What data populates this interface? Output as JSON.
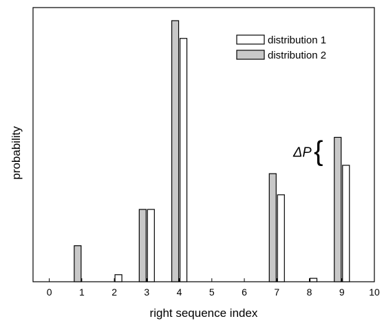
{
  "chart_data": {
    "type": "bar",
    "title": "",
    "xlabel": "right sequence index",
    "ylabel": "probability",
    "xlim": [
      -0.5,
      10
    ],
    "ylim": [
      0,
      1
    ],
    "x_ticks": [
      0,
      1,
      2,
      3,
      4,
      5,
      6,
      7,
      8,
      9,
      10
    ],
    "y_tick_labels_shown": false,
    "grid": false,
    "legend_position": "top-right",
    "categories": [
      1,
      2,
      3,
      4,
      7,
      8,
      9
    ],
    "series": [
      {
        "name": "distribution 1",
        "color": "#ffffff",
        "edge_color": "#000000",
        "values": [
          0.0,
          0.027,
          0.277,
          0.932,
          0.333,
          0.013,
          0.446
        ]
      },
      {
        "name": "distribution 2",
        "color": "#c8c8c8",
        "edge_color": "#000000",
        "values": [
          0.138,
          0.0,
          0.277,
          1.0,
          0.414,
          0.0,
          0.553
        ]
      }
    ],
    "annotations": [
      {
        "text": "ΔP",
        "at_category": 9,
        "brace": "{"
      }
    ]
  }
}
